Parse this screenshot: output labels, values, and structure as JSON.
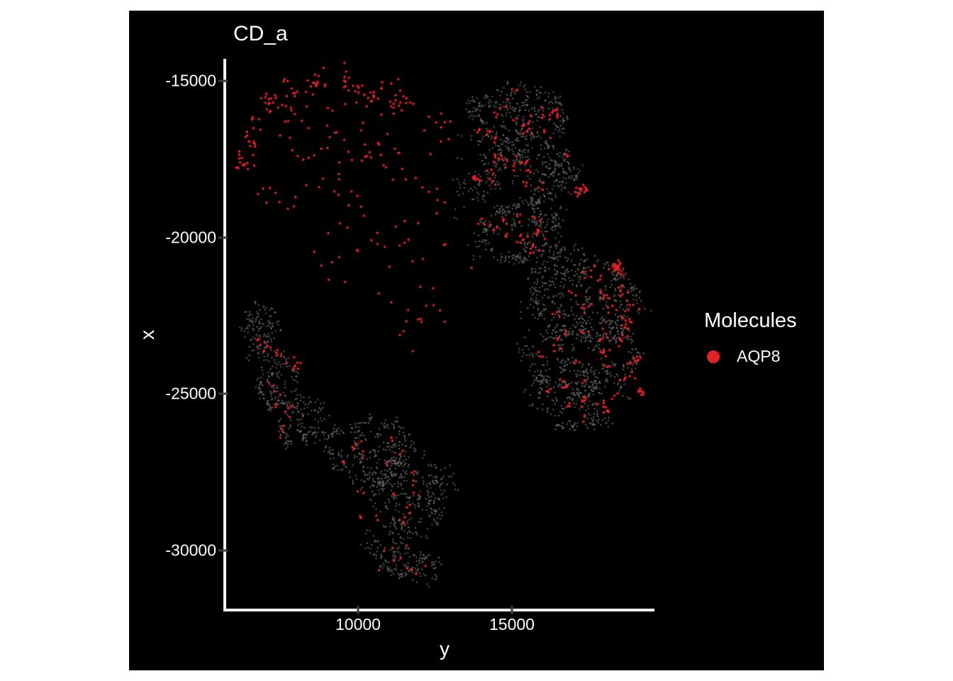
{
  "title": "CD_a",
  "axes": {
    "vertical": {
      "label": "x",
      "tick_values": [
        -15000,
        -20000,
        -25000,
        -30000
      ]
    },
    "horizontal": {
      "label": "y",
      "tick_values": [
        10000,
        15000
      ]
    }
  },
  "legend": {
    "title": "Molecules",
    "items": [
      {
        "label": "AQP8",
        "color": "#e32228"
      }
    ]
  },
  "colors": {
    "page_background": "#ffffff",
    "panel_background": "#000000",
    "axis_line": "#f5f5f5",
    "tick_mark": "#3c3c3c",
    "text": "#ffffff",
    "tissue_gray": "#696969",
    "molecule_red": "#e32228"
  },
  "chart_data": {
    "type": "scatter",
    "title": "CD_a",
    "xlabel": "y",
    "ylabel": "x",
    "x_ticks": [
      10000,
      15000
    ],
    "y_ticks": [
      -15000,
      -20000,
      -25000,
      -30000
    ],
    "x_domain": [
      5691,
      19631
    ],
    "y_domain": [
      -31848,
      -14353
    ],
    "grid": false,
    "background": "#000000",
    "legend_position": "right",
    "cluster_format": [
      "y_center_horiz",
      "x_center_vert",
      "radius_horiz",
      "radius_vert",
      "n_points",
      "clump_size",
      "clump_sigma"
    ],
    "series": [
      {
        "name": "tissue-background",
        "color": "#696969",
        "point_radius": 1.1,
        "in_legend": false,
        "clusters": [
          [
            15184,
            -16159,
            1613,
            1136,
            300,
            4,
            85
          ],
          [
            15530,
            -18205,
            1728,
            1477,
            380,
            4,
            90
          ],
          [
            15300,
            -19910,
            1382,
            1023,
            220,
            4,
            85
          ],
          [
            13690,
            -18091,
            560,
            2950,
            70,
            2,
            110
          ],
          [
            16566,
            -20818,
            1040,
            570,
            80,
            3,
            80
          ],
          [
            17488,
            -21955,
            1843,
            1364,
            350,
            4,
            90
          ],
          [
            17373,
            -23773,
            1843,
            1250,
            330,
            4,
            90
          ],
          [
            17142,
            -25137,
            1613,
            1023,
            220,
            4,
            85
          ],
          [
            15760,
            -23091,
            576,
            2500,
            70,
            2,
            110
          ],
          [
            6843,
            -23046,
            599,
            955,
            130,
            3,
            70
          ],
          [
            7350,
            -24569,
            645,
            955,
            140,
            3,
            70
          ],
          [
            8226,
            -25933,
            783,
            909,
            150,
            3,
            75
          ],
          [
            10346,
            -26842,
            1428,
            1136,
            300,
            3,
            75
          ],
          [
            11843,
            -28092,
            1382,
            1250,
            280,
            3,
            75
          ],
          [
            11267,
            -29797,
            1152,
            1023,
            160,
            3,
            75
          ],
          [
            11843,
            -30593,
            920,
            570,
            60,
            2,
            90
          ]
        ]
      },
      {
        "name": "AQP8",
        "color": "#e32228",
        "point_radius": 1.8,
        "in_legend": true,
        "clusters": [
          [
            6383,
            -17455,
            300,
            500,
            15,
            3,
            110
          ],
          [
            6659,
            -16614,
            300,
            500,
            15,
            3,
            110
          ],
          [
            7166,
            -15932,
            300,
            500,
            15,
            3,
            110
          ],
          [
            7857,
            -15477,
            300,
            500,
            15,
            3,
            110
          ],
          [
            8733,
            -15182,
            300,
            500,
            15,
            3,
            110
          ],
          [
            9700,
            -15091,
            300,
            500,
            15,
            3,
            110
          ],
          [
            10576,
            -15273,
            300,
            500,
            15,
            3,
            110
          ],
          [
            11221,
            -15546,
            300,
            500,
            15,
            3,
            110
          ],
          [
            9900,
            -16600,
            3600,
            1050,
            55,
            1,
            0
          ],
          [
            10000,
            -18790,
            3300,
            1150,
            40,
            1,
            0
          ],
          [
            11000,
            -20930,
            2900,
            1020,
            22,
            1,
            0
          ],
          [
            12070,
            -22410,
            1150,
            1360,
            14,
            1,
            0
          ],
          [
            15300,
            -17864,
            1728,
            2727,
            125,
            3,
            85
          ],
          [
            17258,
            -18591,
            120,
            160,
            16,
            8,
            70
          ],
          [
            17488,
            -23318,
            1728,
            2386,
            145,
            3,
            85
          ],
          [
            18525,
            -20864,
            280,
            350,
            28,
            14,
            90
          ],
          [
            19216,
            -24728,
            90,
            420,
            8,
            4,
            55
          ],
          [
            7466,
            -24455,
            691,
            1818,
            28,
            2,
            80
          ],
          [
            6890,
            -23092,
            300,
            600,
            6,
            2,
            80
          ],
          [
            10921,
            -27637,
            1613,
            1591,
            34,
            2,
            80
          ],
          [
            11497,
            -30365,
            1152,
            682,
            10,
            1,
            0
          ]
        ]
      }
    ]
  }
}
